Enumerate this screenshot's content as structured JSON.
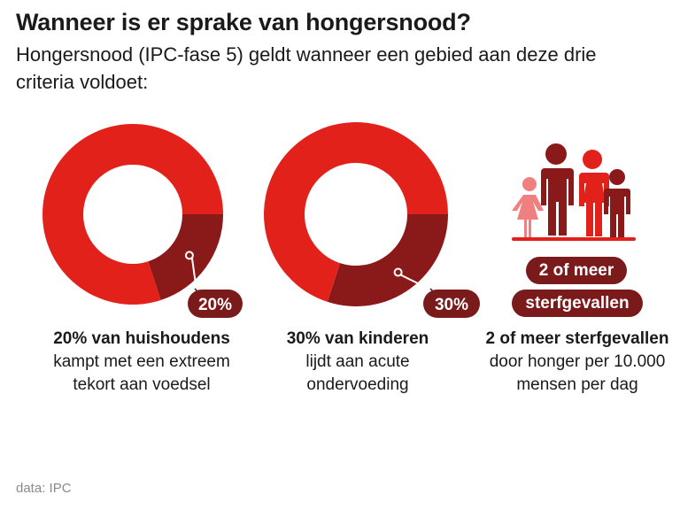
{
  "title": "Wanneer is er sprake van hongersnood?",
  "subtitle": "Hongersnood (IPC-fase 5) geldt wanneer een gebied aan deze drie criteria voldoet:",
  "colors": {
    "main": "#e3211b",
    "dark": "#8a1a1a",
    "badge": "#7a1a1a"
  },
  "chart_data": [
    {
      "type": "pie",
      "slices": [
        {
          "value": 20,
          "color": "#8a1a1a"
        },
        {
          "value": 80,
          "color": "#e3211b"
        }
      ],
      "data_label": "20%",
      "caption_bold": "20% van huishoudens",
      "caption_rest": "kampt met een extreem tekort aan voedsel"
    },
    {
      "type": "pie",
      "slices": [
        {
          "value": 30,
          "color": "#8a1a1a"
        },
        {
          "value": 70,
          "color": "#e3211b"
        }
      ],
      "data_label": "30%",
      "caption_bold": "30% van kinderen",
      "caption_rest": "lijdt aan acute ondervoeding"
    }
  ],
  "criterion3": {
    "icon": "family-icon",
    "badge_line1": "2 of meer",
    "badge_line2": "sterfgevallen",
    "caption_bold": "2 of meer sterfgevallen",
    "caption_rest": "door honger per 10.000 mensen per dag"
  },
  "source": "data: IPC"
}
